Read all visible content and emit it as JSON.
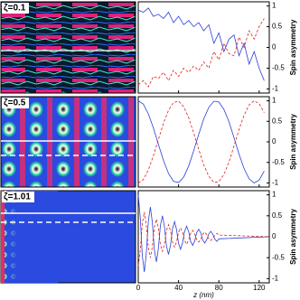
{
  "chart_data": [
    {
      "type": "line",
      "label": "ζ=0.1",
      "ylabel": "Spin asymmetry",
      "x": [
        0,
        5,
        10,
        15,
        20,
        25,
        30,
        35,
        40,
        45,
        50,
        55,
        60,
        65,
        70,
        75,
        80,
        85,
        90,
        95,
        100,
        105,
        110,
        115,
        120,
        125
      ],
      "series": [
        {
          "color": "#2a3fd8",
          "dash": false,
          "values": [
            0.9,
            0.85,
            0.95,
            0.75,
            0.8,
            0.7,
            0.85,
            0.6,
            0.75,
            0.55,
            0.65,
            0.5,
            0.6,
            0.4,
            0.55,
            0.1,
            0.35,
            -0.1,
            0.2,
            0.3,
            -0.2,
            0.1,
            -0.4,
            -0.1,
            -0.5,
            -0.8
          ]
        },
        {
          "color": "#e0201c",
          "dash": true,
          "values": [
            -0.9,
            -0.8,
            -0.95,
            -0.7,
            -0.75,
            -0.6,
            -0.8,
            -0.55,
            -0.7,
            -0.5,
            -0.6,
            -0.45,
            -0.55,
            -0.35,
            -0.5,
            -0.1,
            -0.3,
            0.1,
            -0.15,
            -0.2,
            0.25,
            0,
            0.4,
            0.2,
            0.5,
            0.7
          ]
        }
      ],
      "xlim": [
        0,
        130
      ],
      "ylim": [
        -1.1,
        1.1
      ],
      "xticks": [
        0,
        40,
        80,
        120
      ],
      "yticks": [
        -1,
        -0.5,
        0,
        0.5,
        1
      ]
    },
    {
      "type": "line",
      "label": "ζ=0.5",
      "ylabel": "Spin asymmetry",
      "x": [
        0,
        5,
        10,
        15,
        20,
        25,
        30,
        35,
        40,
        45,
        50,
        55,
        60,
        65,
        70,
        75,
        80,
        85,
        90,
        95,
        100,
        105,
        110,
        115,
        120,
        125
      ],
      "series": [
        {
          "color": "#2a3fd8",
          "dash": false,
          "values": [
            1,
            0.92,
            0.68,
            0.34,
            -0.06,
            -0.45,
            -0.77,
            -0.96,
            -0.99,
            -0.86,
            -0.59,
            -0.22,
            0.18,
            0.56,
            0.84,
            0.99,
            0.97,
            0.79,
            0.49,
            0.1,
            -0.3,
            -0.65,
            -0.9,
            -1,
            -0.93,
            -0.71
          ]
        },
        {
          "color": "#e0201c",
          "dash": true,
          "values": [
            -1,
            -0.92,
            -0.68,
            -0.34,
            0.06,
            0.45,
            0.77,
            0.96,
            0.99,
            0.86,
            0.59,
            0.22,
            -0.18,
            -0.56,
            -0.84,
            -0.99,
            -0.97,
            -0.79,
            -0.49,
            -0.1,
            0.3,
            0.65,
            0.9,
            1,
            0.93,
            0.71
          ]
        }
      ],
      "xlim": [
        0,
        130
      ],
      "ylim": [
        -1.1,
        1.1
      ],
      "xticks": [
        0,
        40,
        80,
        120
      ],
      "yticks": [
        -1,
        -0.5,
        0,
        0.5,
        1
      ]
    },
    {
      "type": "line",
      "label": "ζ=1.01",
      "ylabel": "Spin asymmetry",
      "xlabel": "z (nm)",
      "x": [
        0,
        2,
        4,
        6,
        8,
        10,
        12,
        14,
        16,
        18,
        20,
        22,
        24,
        26,
        28,
        30,
        32,
        34,
        36,
        38,
        40,
        42,
        44,
        46,
        48,
        50,
        52,
        54,
        56,
        58,
        60,
        62,
        64,
        66,
        68,
        70,
        72,
        74,
        76,
        78,
        80,
        130
      ],
      "series": [
        {
          "color": "#2a3fd8",
          "dash": false,
          "values": [
            1,
            0.47,
            -0.45,
            -0.84,
            -0.4,
            0.38,
            0.71,
            0.34,
            -0.32,
            -0.6,
            -0.28,
            0.27,
            0.5,
            0.24,
            -0.22,
            -0.42,
            -0.2,
            0.19,
            0.36,
            0.17,
            -0.16,
            -0.3,
            -0.14,
            0.13,
            0.25,
            0.12,
            -0.11,
            -0.21,
            -0.1,
            0.1,
            0.18,
            0.09,
            -0.08,
            -0.15,
            -0.07,
            0.07,
            0.13,
            0.06,
            -0.06,
            -0.11,
            -0.05,
            0
          ]
        },
        {
          "color": "#e0201c",
          "dash": true,
          "values": [
            -0.7,
            -0.33,
            0.32,
            0.59,
            0.28,
            -0.27,
            -0.5,
            -0.24,
            0.22,
            0.42,
            0.2,
            -0.19,
            -0.35,
            -0.17,
            0.15,
            0.29,
            0.14,
            -0.13,
            -0.25,
            -0.12,
            0.11,
            0.21,
            0.1,
            -0.09,
            -0.18,
            -0.08,
            0.08,
            0.15,
            0.07,
            -0.07,
            -0.13,
            -0.06,
            0.06,
            0.11,
            0.05,
            -0.05,
            -0.09,
            -0.04,
            0.04,
            0.08,
            0.04,
            0
          ]
        }
      ],
      "xlim": [
        0,
        130
      ],
      "ylim": [
        -1.1,
        1.1
      ],
      "xticks": [
        0,
        40,
        80,
        120
      ],
      "yticks": [
        -1,
        -0.5,
        0,
        0.5,
        1
      ]
    }
  ]
}
